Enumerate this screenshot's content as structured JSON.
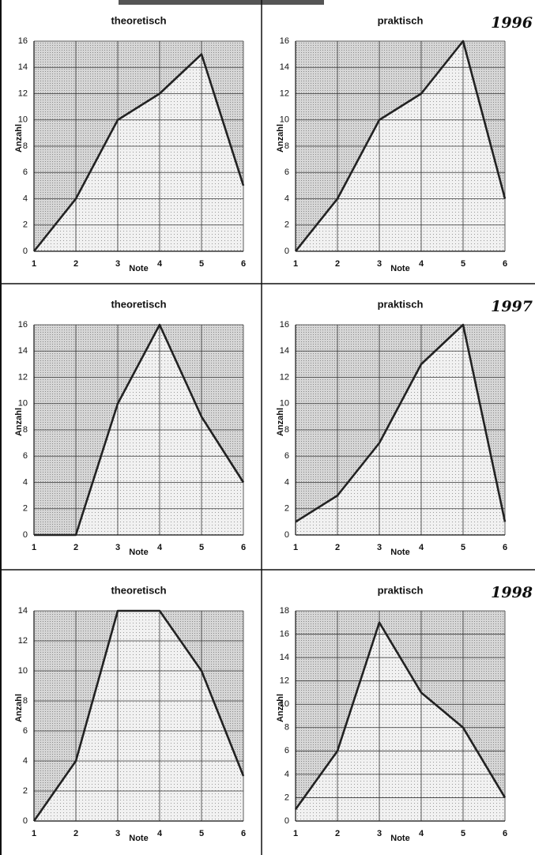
{
  "chart_data": [
    {
      "type": "area",
      "title": "theoretisch",
      "x_label": "Note",
      "y_label": "Anzahl",
      "x": [
        1,
        2,
        3,
        4,
        5,
        6
      ],
      "values": [
        0,
        4,
        10,
        12,
        15,
        5
      ],
      "xlim": [
        1,
        6
      ],
      "xticks": [
        1,
        2,
        3,
        4,
        5,
        6
      ],
      "ylim": [
        0,
        16
      ],
      "yticks": [
        0,
        2,
        4,
        6,
        8,
        10,
        12,
        14,
        16
      ],
      "grid": true,
      "color": "#222222"
    },
    {
      "type": "area",
      "title": "praktisch",
      "annotation": "1996",
      "x_label": "Note",
      "y_label": "Anzahl",
      "x": [
        1,
        2,
        3,
        4,
        5,
        6
      ],
      "values": [
        0,
        4,
        10,
        12,
        16,
        4
      ],
      "xlim": [
        1,
        6
      ],
      "xticks": [
        1,
        2,
        3,
        4,
        5,
        6
      ],
      "ylim": [
        0,
        16
      ],
      "yticks": [
        0,
        2,
        4,
        6,
        8,
        10,
        12,
        14,
        16
      ],
      "grid": true,
      "color": "#222222"
    },
    {
      "type": "area",
      "title": "theoretisch",
      "x_label": "Note",
      "y_label": "Anzahl",
      "x": [
        1,
        2,
        3,
        4,
        5,
        6
      ],
      "values": [
        0,
        0,
        10,
        16,
        9,
        4
      ],
      "xlim": [
        1,
        6
      ],
      "xticks": [
        1,
        2,
        3,
        4,
        5,
        6
      ],
      "ylim": [
        0,
        16
      ],
      "yticks": [
        0,
        2,
        4,
        6,
        8,
        10,
        12,
        14,
        16
      ],
      "grid": true,
      "color": "#222222"
    },
    {
      "type": "area",
      "title": "praktisch",
      "annotation": "1997",
      "x_label": "Note",
      "y_label": "Anzahl",
      "x": [
        1,
        2,
        3,
        4,
        5,
        6
      ],
      "values": [
        1,
        3,
        7,
        13,
        16,
        1
      ],
      "xlim": [
        1,
        6
      ],
      "xticks": [
        1,
        2,
        3,
        4,
        5,
        6
      ],
      "ylim": [
        0,
        16
      ],
      "yticks": [
        0,
        2,
        4,
        6,
        8,
        10,
        12,
        14,
        16
      ],
      "grid": true,
      "color": "#222222"
    },
    {
      "type": "area",
      "title": "theoretisch",
      "x_label": "Note",
      "y_label": "Anzahl",
      "x": [
        1,
        2,
        3,
        4,
        5,
        6
      ],
      "values": [
        0,
        4,
        14,
        14,
        10,
        3
      ],
      "xlim": [
        1,
        6
      ],
      "xticks": [
        1,
        2,
        3,
        4,
        5,
        6
      ],
      "ylim": [
        0,
        14
      ],
      "yticks": [
        0,
        2,
        4,
        6,
        8,
        10,
        12,
        14
      ],
      "grid": true,
      "color": "#222222"
    },
    {
      "type": "area",
      "title": "praktisch",
      "annotation": "1998",
      "x_label": "Note",
      "y_label": "Anzahl",
      "x": [
        1,
        2,
        3,
        4,
        5,
        6
      ],
      "values": [
        1,
        6,
        17,
        11,
        8,
        2
      ],
      "xlim": [
        1,
        6
      ],
      "xticks": [
        1,
        2,
        3,
        4,
        5,
        6
      ],
      "ylim": [
        0,
        18
      ],
      "yticks": [
        0,
        2,
        4,
        6,
        8,
        10,
        12,
        14,
        16,
        18
      ],
      "grid": true,
      "color": "#222222"
    }
  ]
}
